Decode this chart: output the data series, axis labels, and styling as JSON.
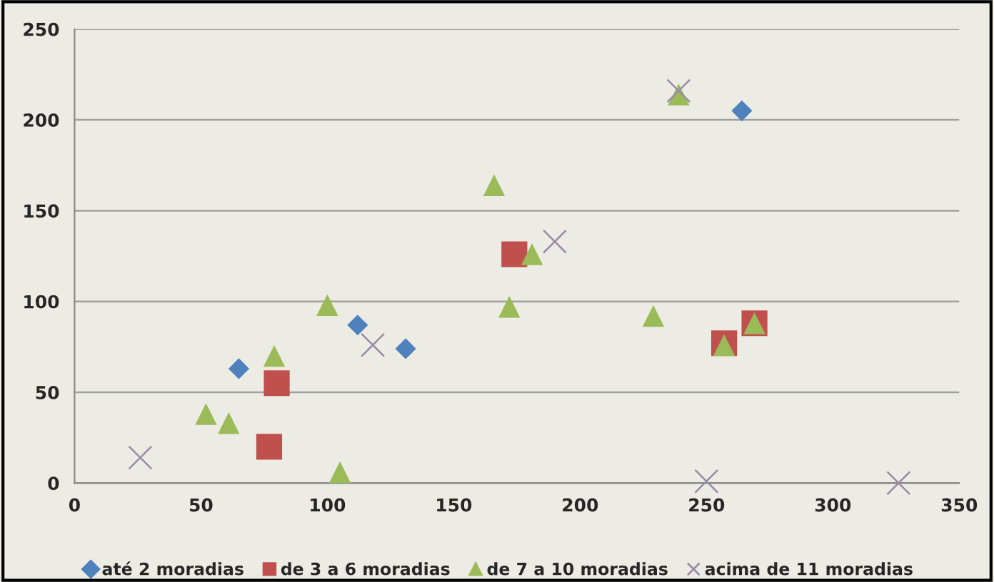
{
  "chart_data": {
    "type": "scatter",
    "xlim": [
      0,
      350
    ],
    "xticks": [
      0,
      50,
      100,
      150,
      200,
      250,
      300,
      350
    ],
    "ylim": [
      0,
      250
    ],
    "yticks": [
      0,
      50,
      100,
      150,
      200,
      250
    ],
    "grid": "y",
    "legend": "bottom",
    "series": [
      {
        "name": "até 2 moradias",
        "color": "#4f81bd",
        "marker": "diamond",
        "x": [
          65,
          112,
          131,
          264
        ],
        "values": [
          63,
          87,
          74,
          205
        ]
      },
      {
        "name": "de 3 a 6 moradias",
        "color": "#c0504d",
        "marker": "square",
        "x": [
          77,
          80,
          174,
          257,
          269
        ],
        "values": [
          20,
          55,
          126,
          77,
          88
        ]
      },
      {
        "name": "de 7 a 10 moradias",
        "color": "#9bbb59",
        "marker": "triangle",
        "x": [
          52,
          61,
          79,
          100,
          105,
          166,
          172,
          181,
          229,
          239,
          257,
          269
        ],
        "values": [
          38,
          33,
          70,
          98,
          6,
          164,
          97,
          126,
          92,
          214,
          76,
          88
        ]
      },
      {
        "name": "acima de 11 moradias",
        "color": "#9a8aa8",
        "marker": "cross",
        "x": [
          26,
          118,
          190,
          239,
          250,
          326
        ],
        "values": [
          14,
          76,
          133,
          216,
          1,
          0
        ]
      }
    ]
  }
}
